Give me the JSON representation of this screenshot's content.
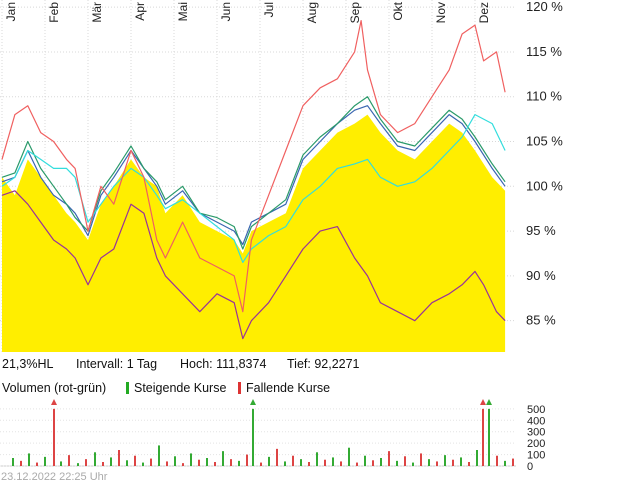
{
  "chart_data": {
    "type": "line",
    "months": [
      "Jan",
      "Feb",
      "Mär",
      "Apr",
      "Mai",
      "Jun",
      "Jul",
      "Aug",
      "Sep",
      "Okt",
      "Nov",
      "Dez"
    ],
    "y_ticks": [
      "120 %",
      "115 %",
      "110 %",
      "105 %",
      "100 %",
      "95 %",
      "90 %",
      "85 %"
    ],
    "y_tick_values": [
      120,
      115,
      110,
      105,
      100,
      95,
      90,
      85
    ],
    "ylim": [
      81.5,
      120.8
    ],
    "grid": true,
    "info": {
      "range": "21,3%HL",
      "interval": "Intervall: 1 Tag",
      "high": "Hoch: 111,8374",
      "low": "Tief: 92,2271"
    },
    "volume_legend": {
      "title": "Volumen (rot-grün)",
      "up": "Steigende Kurse",
      "down": "Fallende Kurse"
    },
    "volume_ticks": [
      "500",
      "400",
      "300",
      "200",
      "100",
      "0"
    ],
    "volume_tick_values": [
      500,
      400,
      300,
      200,
      100,
      0
    ],
    "timestamp": "23.12.2022 22:25 Uhr",
    "series": [
      {
        "name": "",
        "color": "#ffee00",
        "style": "area",
        "points": [
          [
            0,
            101
          ],
          [
            0.3,
            99
          ],
          [
            0.6,
            103
          ],
          [
            0.9,
            101
          ],
          [
            1.2,
            99
          ],
          [
            1.5,
            97
          ],
          [
            1.7,
            96
          ],
          [
            2,
            94
          ],
          [
            2.3,
            98
          ],
          [
            2.6,
            100
          ],
          [
            3,
            103
          ],
          [
            3.3,
            101
          ],
          [
            3.6,
            100
          ],
          [
            3.8,
            97
          ],
          [
            4.2,
            99
          ],
          [
            4.6,
            96
          ],
          [
            5,
            95
          ],
          [
            5.4,
            94
          ],
          [
            5.6,
            92.5
          ],
          [
            5.8,
            95
          ],
          [
            6.2,
            96
          ],
          [
            6.6,
            97
          ],
          [
            7,
            102
          ],
          [
            7.4,
            104
          ],
          [
            7.8,
            106
          ],
          [
            8.2,
            107
          ],
          [
            8.5,
            108
          ],
          [
            8.8,
            106
          ],
          [
            9.2,
            104
          ],
          [
            9.6,
            103
          ],
          [
            10,
            105
          ],
          [
            10.4,
            107
          ],
          [
            10.7,
            106
          ],
          [
            11,
            104
          ],
          [
            11.4,
            101
          ],
          [
            11.7,
            99.5
          ]
        ]
      },
      {
        "name": "",
        "color": "#3a66b0",
        "style": "line",
        "points": [
          [
            0,
            100.5
          ],
          [
            0.3,
            101
          ],
          [
            0.6,
            104
          ],
          [
            0.9,
            101
          ],
          [
            1.2,
            99
          ],
          [
            1.5,
            98
          ],
          [
            1.7,
            97
          ],
          [
            2,
            94.5
          ],
          [
            2.3,
            99
          ],
          [
            2.6,
            101
          ],
          [
            3,
            104
          ],
          [
            3.3,
            102
          ],
          [
            3.6,
            100
          ],
          [
            3.8,
            98
          ],
          [
            4.2,
            99.5
          ],
          [
            4.6,
            97
          ],
          [
            5,
            96
          ],
          [
            5.4,
            95
          ],
          [
            5.6,
            93.5
          ],
          [
            5.8,
            96
          ],
          [
            6.2,
            97
          ],
          [
            6.6,
            98
          ],
          [
            7,
            103
          ],
          [
            7.4,
            105
          ],
          [
            7.8,
            107
          ],
          [
            8.2,
            108.5
          ],
          [
            8.5,
            109
          ],
          [
            8.8,
            107
          ],
          [
            9.2,
            104.5
          ],
          [
            9.6,
            104
          ],
          [
            10,
            106
          ],
          [
            10.4,
            108
          ],
          [
            10.7,
            107
          ],
          [
            11,
            105
          ],
          [
            11.4,
            102
          ],
          [
            11.7,
            100
          ]
        ]
      },
      {
        "name": "",
        "color": "#2a9a6a",
        "style": "line",
        "points": [
          [
            0,
            101
          ],
          [
            0.3,
            101.5
          ],
          [
            0.6,
            105
          ],
          [
            0.9,
            102
          ],
          [
            1.2,
            100
          ],
          [
            1.5,
            98
          ],
          [
            1.7,
            96.5
          ],
          [
            2,
            95
          ],
          [
            2.3,
            99.5
          ],
          [
            2.6,
            101.5
          ],
          [
            3,
            104.5
          ],
          [
            3.3,
            102
          ],
          [
            3.6,
            100.5
          ],
          [
            3.8,
            98.5
          ],
          [
            4.2,
            100
          ],
          [
            4.6,
            97
          ],
          [
            5,
            96.5
          ],
          [
            5.4,
            95.5
          ],
          [
            5.6,
            93
          ],
          [
            5.8,
            95.5
          ],
          [
            6.2,
            97
          ],
          [
            6.6,
            98.5
          ],
          [
            7,
            103.5
          ],
          [
            7.4,
            105.5
          ],
          [
            7.8,
            107
          ],
          [
            8.2,
            109
          ],
          [
            8.5,
            110
          ],
          [
            8.8,
            107.5
          ],
          [
            9.2,
            105
          ],
          [
            9.6,
            104.5
          ],
          [
            10,
            106.5
          ],
          [
            10.4,
            108.5
          ],
          [
            10.7,
            107.5
          ],
          [
            11,
            105.5
          ],
          [
            11.4,
            102.5
          ],
          [
            11.7,
            100.5
          ]
        ]
      },
      {
        "name": "",
        "color": "#33dddd",
        "style": "line",
        "points": [
          [
            0,
            100
          ],
          [
            0.3,
            101
          ],
          [
            0.6,
            104
          ],
          [
            0.9,
            103
          ],
          [
            1.2,
            102
          ],
          [
            1.5,
            102
          ],
          [
            1.7,
            101
          ],
          [
            2,
            96
          ],
          [
            2.3,
            98
          ],
          [
            2.6,
            100
          ],
          [
            3,
            102
          ],
          [
            3.3,
            101
          ],
          [
            3.6,
            99
          ],
          [
            3.8,
            97.5
          ],
          [
            4.2,
            98.5
          ],
          [
            4.6,
            97
          ],
          [
            5,
            95.5
          ],
          [
            5.4,
            94
          ],
          [
            5.6,
            91.5
          ],
          [
            5.8,
            93
          ],
          [
            6.2,
            94.5
          ],
          [
            6.6,
            95.5
          ],
          [
            7,
            98.5
          ],
          [
            7.4,
            100
          ],
          [
            7.8,
            102
          ],
          [
            8.2,
            102.5
          ],
          [
            8.5,
            103
          ],
          [
            8.8,
            101
          ],
          [
            9.2,
            100
          ],
          [
            9.6,
            100.5
          ],
          [
            10,
            102
          ],
          [
            10.4,
            104
          ],
          [
            10.7,
            105.5
          ],
          [
            11,
            108
          ],
          [
            11.4,
            107
          ],
          [
            11.7,
            104
          ]
        ]
      },
      {
        "name": "",
        "color": "#f06060",
        "style": "line",
        "points": [
          [
            0,
            103
          ],
          [
            0.3,
            108
          ],
          [
            0.6,
            109
          ],
          [
            0.9,
            106
          ],
          [
            1.2,
            105
          ],
          [
            1.5,
            103
          ],
          [
            1.7,
            102
          ],
          [
            2,
            95
          ],
          [
            2.3,
            100
          ],
          [
            2.6,
            98
          ],
          [
            3,
            104
          ],
          [
            3.3,
            101
          ],
          [
            3.6,
            94
          ],
          [
            3.8,
            92
          ],
          [
            4.2,
            96
          ],
          [
            4.6,
            92
          ],
          [
            5,
            91
          ],
          [
            5.4,
            90
          ],
          [
            5.6,
            86
          ],
          [
            5.8,
            94
          ],
          [
            6.2,
            99
          ],
          [
            6.6,
            104
          ],
          [
            7,
            109
          ],
          [
            7.4,
            111
          ],
          [
            7.8,
            112
          ],
          [
            8.2,
            115
          ],
          [
            8.35,
            118.5
          ],
          [
            8.5,
            113
          ],
          [
            8.8,
            108
          ],
          [
            9.2,
            106
          ],
          [
            9.6,
            107
          ],
          [
            10,
            110
          ],
          [
            10.4,
            113
          ],
          [
            10.7,
            117
          ],
          [
            11,
            118
          ],
          [
            11.2,
            114
          ],
          [
            11.5,
            115
          ],
          [
            11.7,
            110.5
          ]
        ]
      },
      {
        "name": "",
        "color": "#993399",
        "style": "line",
        "points": [
          [
            0,
            99
          ],
          [
            0.3,
            99.5
          ],
          [
            0.6,
            98
          ],
          [
            0.9,
            96
          ],
          [
            1.2,
            94
          ],
          [
            1.5,
            93
          ],
          [
            1.7,
            92
          ],
          [
            2,
            89
          ],
          [
            2.3,
            92
          ],
          [
            2.6,
            93
          ],
          [
            3,
            98
          ],
          [
            3.3,
            97
          ],
          [
            3.6,
            92
          ],
          [
            3.8,
            90
          ],
          [
            4.2,
            88
          ],
          [
            4.6,
            86
          ],
          [
            5,
            88
          ],
          [
            5.4,
            87
          ],
          [
            5.6,
            83
          ],
          [
            5.8,
            85
          ],
          [
            6.2,
            87
          ],
          [
            6.6,
            90
          ],
          [
            7,
            93
          ],
          [
            7.4,
            95
          ],
          [
            7.8,
            95.5
          ],
          [
            8.2,
            92
          ],
          [
            8.5,
            90
          ],
          [
            8.8,
            87
          ],
          [
            9.2,
            86
          ],
          [
            9.6,
            85
          ],
          [
            10,
            87
          ],
          [
            10.4,
            88
          ],
          [
            10.7,
            89
          ],
          [
            11,
            90.5
          ],
          [
            11.2,
            89
          ],
          [
            11.5,
            86
          ],
          [
            11.7,
            85
          ]
        ]
      }
    ],
    "volume": {
      "bars": [
        [
          12,
          70
        ],
        [
          20,
          45
        ],
        [
          28,
          110
        ],
        [
          36,
          30
        ],
        [
          44,
          80
        ],
        [
          53,
          500
        ],
        [
          60,
          40
        ],
        [
          68,
          95
        ],
        [
          77,
          25
        ],
        [
          85,
          60
        ],
        [
          94,
          120
        ],
        [
          102,
          35
        ],
        [
          110,
          75
        ],
        [
          118,
          140
        ],
        [
          126,
          50
        ],
        [
          134,
          90
        ],
        [
          142,
          30
        ],
        [
          150,
          65
        ],
        [
          158,
          180
        ],
        [
          166,
          40
        ],
        [
          174,
          85
        ],
        [
          182,
          25
        ],
        [
          190,
          110
        ],
        [
          198,
          55
        ],
        [
          206,
          70
        ],
        [
          214,
          35
        ],
        [
          222,
          130
        ],
        [
          230,
          60
        ],
        [
          238,
          45
        ],
        [
          246,
          100
        ],
        [
          252,
          500
        ],
        [
          260,
          30
        ],
        [
          268,
          80
        ],
        [
          276,
          150
        ],
        [
          284,
          40
        ],
        [
          292,
          90
        ],
        [
          300,
          60
        ],
        [
          308,
          35
        ],
        [
          316,
          120
        ],
        [
          324,
          55
        ],
        [
          332,
          75
        ],
        [
          340,
          40
        ],
        [
          348,
          160
        ],
        [
          356,
          30
        ],
        [
          364,
          90
        ],
        [
          372,
          50
        ],
        [
          380,
          70
        ],
        [
          388,
          130
        ],
        [
          396,
          45
        ],
        [
          404,
          85
        ],
        [
          412,
          30
        ],
        [
          420,
          110
        ],
        [
          428,
          60
        ],
        [
          436,
          40
        ],
        [
          444,
          95
        ],
        [
          452,
          55
        ],
        [
          460,
          75
        ],
        [
          468,
          35
        ],
        [
          476,
          140
        ],
        [
          482,
          500
        ],
        [
          488,
          500
        ],
        [
          496,
          90
        ],
        [
          504,
          45
        ],
        [
          512,
          65
        ]
      ],
      "up_color": "#33aa33",
      "down_color": "#dd4444"
    }
  }
}
